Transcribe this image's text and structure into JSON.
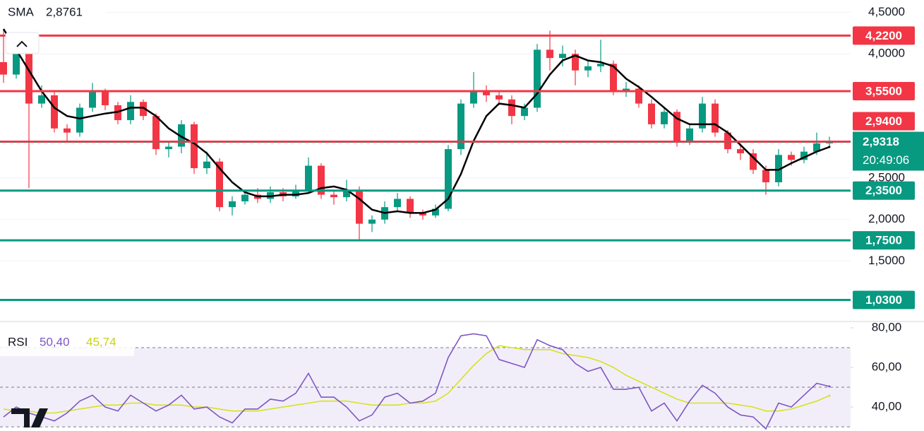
{
  "chart_data": [
    {
      "type": "candlestick",
      "indicator": {
        "name": "SMA",
        "color": "#000000",
        "values": [
          4.3,
          4.05,
          3.8,
          3.55,
          3.35,
          3.25,
          3.22,
          3.25,
          3.28,
          3.3,
          3.35,
          3.35,
          3.25,
          3.1,
          3.0,
          2.92,
          2.8,
          2.62,
          2.45,
          2.33,
          2.28,
          2.28,
          2.3,
          2.3,
          2.32,
          2.38,
          2.4,
          2.36,
          2.25,
          2.12,
          2.08,
          2.1,
          2.08,
          2.08,
          2.12,
          2.25,
          2.55,
          2.95,
          3.25,
          3.4,
          3.38,
          3.35,
          3.52,
          3.75,
          3.92,
          3.98,
          3.92,
          3.9,
          3.85,
          3.7,
          3.6,
          3.48,
          3.35,
          3.22,
          3.15,
          3.15,
          3.15,
          3.05,
          2.9,
          2.75,
          2.6,
          2.6,
          2.68,
          2.75,
          2.82,
          2.8761
        ],
        "current": {
          "value": 2.8761,
          "label": "2,8761"
        }
      },
      "up_color": "#089981",
      "down_color": "#f23645",
      "open": [
        3.9,
        3.75,
        4.05,
        3.4,
        3.5,
        3.1,
        3.05,
        3.35,
        3.55,
        3.38,
        3.2,
        3.42,
        3.25,
        2.85,
        2.88,
        3.15,
        2.62,
        2.7,
        2.15,
        2.22,
        2.3,
        2.25,
        2.33,
        2.28,
        2.36,
        2.65,
        2.3,
        2.27,
        2.35,
        1.95,
        2.0,
        2.15,
        2.25,
        2.08,
        2.05,
        2.13,
        2.85,
        3.4,
        3.55,
        3.5,
        3.45,
        3.25,
        3.35,
        4.05,
        3.95,
        4.0,
        3.8,
        3.85,
        3.88,
        3.55,
        3.58,
        3.4,
        3.15,
        3.3,
        2.95,
        3.1,
        3.4,
        3.05,
        2.85,
        2.8,
        2.6,
        2.45,
        2.78,
        2.72,
        2.82,
        2.92
      ],
      "high": [
        4.3,
        4.12,
        4.08,
        3.62,
        3.55,
        3.15,
        3.4,
        3.65,
        3.58,
        3.42,
        3.5,
        3.45,
        3.28,
        2.95,
        3.2,
        3.18,
        2.82,
        2.74,
        2.28,
        2.36,
        2.38,
        2.4,
        2.38,
        2.42,
        2.75,
        2.68,
        2.35,
        2.48,
        2.4,
        2.05,
        2.22,
        2.32,
        2.28,
        2.12,
        2.18,
        2.9,
        3.45,
        3.78,
        3.62,
        3.55,
        3.5,
        3.4,
        4.12,
        4.28,
        4.1,
        4.05,
        3.92,
        4.17,
        3.92,
        3.66,
        3.62,
        3.45,
        3.35,
        3.33,
        3.15,
        3.48,
        3.45,
        3.08,
        2.92,
        2.85,
        2.65,
        2.85,
        2.82,
        2.88,
        3.05,
        3.0
      ],
      "low": [
        3.65,
        3.7,
        2.38,
        3.35,
        3.05,
        2.95,
        3.0,
        3.3,
        3.32,
        3.15,
        3.15,
        3.2,
        2.78,
        2.75,
        2.8,
        2.55,
        2.55,
        2.1,
        2.05,
        2.18,
        2.2,
        2.2,
        2.22,
        2.25,
        2.32,
        2.25,
        2.18,
        2.22,
        1.75,
        1.85,
        1.95,
        2.1,
        2.02,
        2.0,
        2.02,
        2.1,
        2.78,
        3.35,
        3.42,
        3.38,
        3.15,
        3.2,
        3.3,
        3.8,
        3.85,
        3.62,
        3.72,
        3.78,
        3.5,
        3.48,
        3.35,
        3.1,
        3.1,
        2.88,
        2.9,
        3.05,
        3.0,
        2.8,
        2.72,
        2.55,
        2.3,
        2.4,
        2.65,
        2.68,
        2.78,
        2.88
      ],
      "close": [
        3.75,
        4.05,
        3.4,
        3.5,
        3.1,
        3.05,
        3.35,
        3.55,
        3.38,
        3.2,
        3.42,
        3.25,
        2.85,
        2.88,
        3.15,
        2.62,
        2.7,
        2.15,
        2.22,
        2.3,
        2.25,
        2.33,
        2.28,
        2.36,
        2.65,
        2.3,
        2.27,
        2.35,
        1.95,
        2.0,
        2.15,
        2.25,
        2.08,
        2.05,
        2.13,
        2.85,
        3.4,
        3.55,
        3.5,
        3.45,
        3.25,
        3.35,
        4.05,
        3.95,
        4.0,
        3.8,
        3.85,
        3.88,
        3.55,
        3.58,
        3.4,
        3.15,
        3.3,
        2.95,
        3.1,
        3.4,
        3.05,
        2.85,
        2.8,
        2.6,
        2.45,
        2.78,
        2.72,
        2.82,
        2.92,
        2.9318
      ],
      "ylim": [
        0.77,
        4.65
      ],
      "yticks": [
        {
          "value": 4.5,
          "label": "4,5000"
        },
        {
          "value": 4.0,
          "label": "4,0000"
        },
        {
          "value": 2.5,
          "label": "2,5000"
        },
        {
          "value": 2.0,
          "label": "2,0000"
        },
        {
          "value": 1.5,
          "label": "1,5000"
        }
      ],
      "grid": true,
      "levels": [
        {
          "value": 4.22,
          "label": "4,2200",
          "color": "#f23645"
        },
        {
          "value": 3.55,
          "label": "3,5500",
          "color": "#f23645"
        },
        {
          "value": 2.94,
          "label": "2,9400",
          "color": "#f23645"
        },
        {
          "value": 2.35,
          "label": "2,3500",
          "color": "#089981"
        },
        {
          "value": 1.75,
          "label": "1,7500",
          "color": "#089981"
        },
        {
          "value": 1.03,
          "label": "1,0300",
          "color": "#089981"
        }
      ],
      "current_price": {
        "value": 2.9318,
        "label": "2,9318",
        "countdown": "20:49:06",
        "color": "#089981"
      }
    },
    {
      "type": "line",
      "title": "RSI",
      "series": [
        {
          "color": "#7e57c2",
          "values": [
            35,
            40,
            37,
            35,
            33,
            37,
            43,
            46,
            40,
            38,
            46,
            42,
            38,
            41,
            46,
            39,
            40,
            35,
            32,
            39,
            39,
            44,
            43,
            47,
            57,
            45,
            45,
            40,
            33,
            36,
            45,
            47,
            42,
            43,
            47,
            65,
            76,
            77,
            76,
            64,
            62,
            60,
            74,
            71,
            69,
            62,
            58,
            60,
            49,
            49,
            50,
            38,
            42,
            33,
            43,
            51,
            47,
            40,
            36,
            35,
            29,
            42,
            40,
            46,
            52,
            50.4
          ],
          "current": {
            "value": 50.4,
            "label": "50,40"
          }
        },
        {
          "color": "#d7e21f",
          "values": [
            39,
            38,
            38,
            37,
            37,
            38,
            39,
            40,
            41,
            41,
            42,
            42,
            41,
            41,
            41,
            40,
            40,
            39,
            38,
            38,
            38,
            39,
            40,
            41,
            42,
            43,
            43,
            43,
            42,
            41,
            41,
            41,
            42,
            42,
            43,
            47,
            54,
            61,
            67,
            71,
            70,
            69,
            69,
            69,
            67,
            66,
            65,
            63,
            60,
            56,
            53,
            50,
            47,
            44,
            42,
            42,
            42,
            42,
            41,
            40,
            38,
            38,
            39,
            41,
            43,
            45.74
          ],
          "current": {
            "value": 45.74,
            "label": "45,74"
          }
        }
      ],
      "ylim": [
        27.9,
        83.2
      ],
      "yticks": [
        {
          "value": 80,
          "label": "80,00"
        },
        {
          "value": 60,
          "label": "60,00"
        },
        {
          "value": 40,
          "label": "40,00"
        }
      ],
      "levels": [
        70,
        50,
        30
      ]
    }
  ]
}
